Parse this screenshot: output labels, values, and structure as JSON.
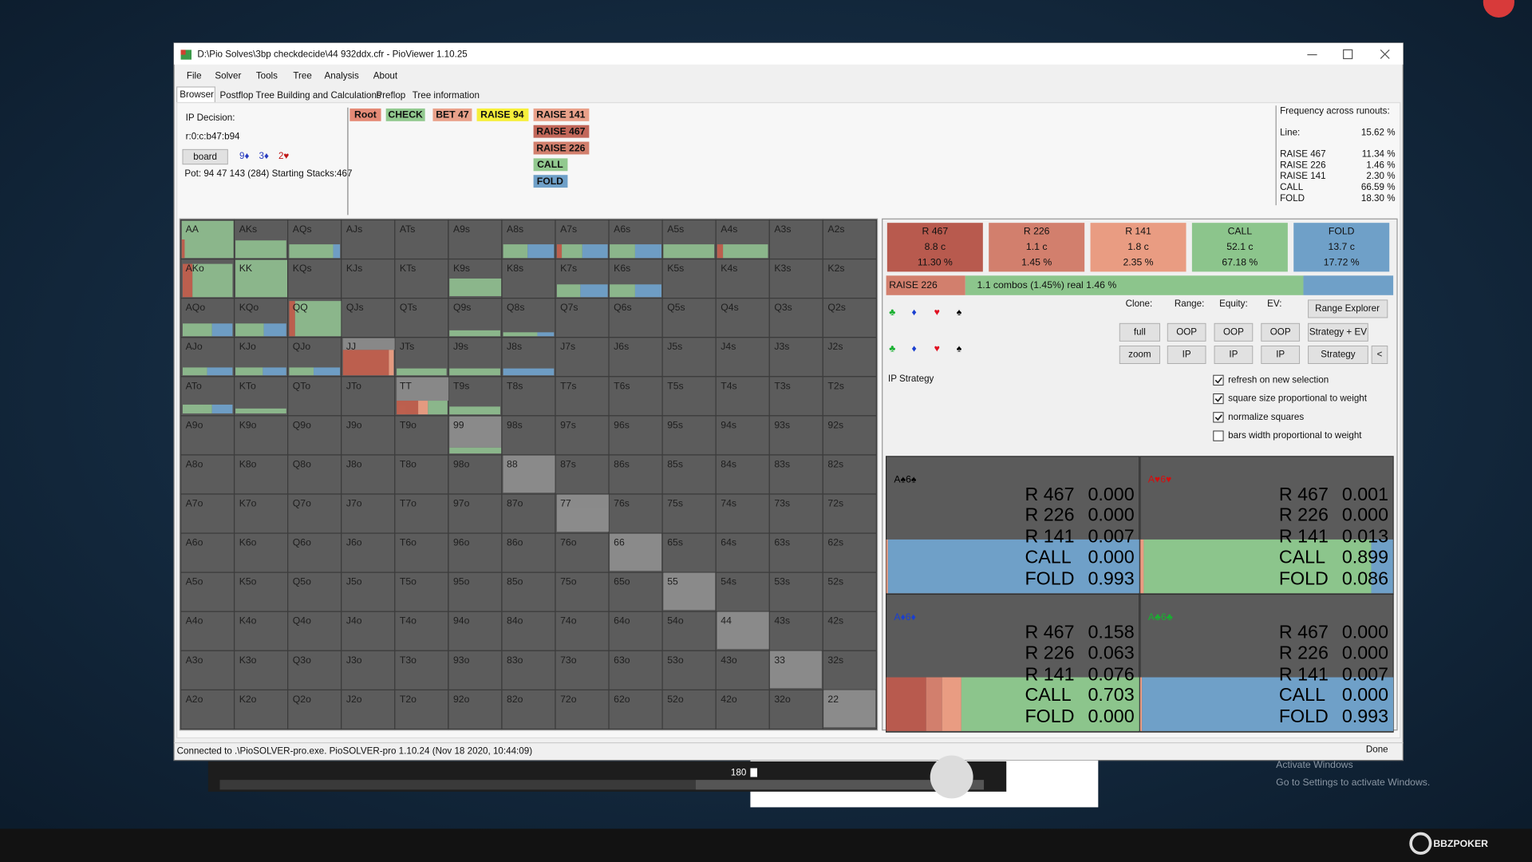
{
  "window": {
    "title": "D:\\Pio Solves\\3bp checkdecide\\44 932ddx.cfr - PioViewer 1.10.25",
    "menu": [
      "File",
      "Solver",
      "Tools",
      "Tree",
      "Analysis",
      "About"
    ],
    "tabs": [
      "Browser",
      "Postflop Tree Building and Calculations",
      "Preflop",
      "Tree information"
    ],
    "status": "Connected to .\\PioSOLVER-pro.exe. PioSOLVER-pro 1.10.24 (Nov 18 2020, 10:44:09)",
    "status_right": "Done"
  },
  "decision": {
    "label": "IP Decision:",
    "line": "r:0:c:b47:b94",
    "board_button": "board",
    "board_cards": [
      "9♦",
      "3♦",
      "2♥"
    ],
    "pot": "Pot: 94 47 143 (284) Starting Stacks:467"
  },
  "tree": {
    "path": [
      "Root",
      "CHECK",
      "BET 47",
      "RAISE 94",
      "RAISE 141"
    ],
    "actions": [
      "RAISE 467",
      "RAISE 226",
      "CALL",
      "FOLD"
    ]
  },
  "frequency": {
    "title": "Frequency across runouts:",
    "line_label": "Line:",
    "line_value": "15.62 %",
    "rows": [
      [
        "RAISE 467",
        "11.34 %"
      ],
      [
        "RAISE 226",
        "1.46 %"
      ],
      [
        "RAISE 141",
        "2.30 %"
      ],
      [
        "CALL",
        "66.59 %"
      ],
      [
        "FOLD",
        "18.30 %"
      ]
    ]
  },
  "grid": {
    "rows": [
      [
        "AA",
        "AKs",
        "AQs",
        "AJs",
        "ATs",
        "A9s",
        "A8s",
        "A7s",
        "A6s",
        "A5s",
        "A4s",
        "A3s",
        "A2s"
      ],
      [
        "AKo",
        "KK",
        "KQs",
        "KJs",
        "KTs",
        "K9s",
        "K8s",
        "K7s",
        "K6s",
        "K5s",
        "K4s",
        "K3s",
        "K2s"
      ],
      [
        "AQo",
        "KQo",
        "QQ",
        "QJs",
        "QTs",
        "Q9s",
        "Q8s",
        "Q7s",
        "Q6s",
        "Q5s",
        "Q4s",
        "Q3s",
        "Q2s"
      ],
      [
        "AJo",
        "KJo",
        "QJo",
        "JJ",
        "JTs",
        "J9s",
        "J8s",
        "J7s",
        "J6s",
        "J5s",
        "J4s",
        "J3s",
        "J2s"
      ],
      [
        "ATo",
        "KTo",
        "QTo",
        "JTo",
        "TT",
        "T9s",
        "T8s",
        "T7s",
        "T6s",
        "T5s",
        "T4s",
        "T3s",
        "T2s"
      ],
      [
        "A9o",
        "K9o",
        "Q9o",
        "J9o",
        "T9o",
        "99",
        "98s",
        "97s",
        "96s",
        "95s",
        "94s",
        "93s",
        "92s"
      ],
      [
        "A8o",
        "K8o",
        "Q8o",
        "J8o",
        "T8o",
        "98o",
        "88",
        "87s",
        "86s",
        "85s",
        "84s",
        "83s",
        "82s"
      ],
      [
        "A7o",
        "K7o",
        "Q7o",
        "J7o",
        "T7o",
        "97o",
        "87o",
        "77",
        "76s",
        "75s",
        "74s",
        "73s",
        "72s"
      ],
      [
        "A6o",
        "K6o",
        "Q6o",
        "J6o",
        "T6o",
        "96o",
        "86o",
        "76o",
        "66",
        "65s",
        "64s",
        "63s",
        "62s"
      ],
      [
        "A5o",
        "K5o",
        "Q5o",
        "J5o",
        "T5o",
        "95o",
        "85o",
        "75o",
        "65o",
        "55",
        "54s",
        "53s",
        "52s"
      ],
      [
        "A4o",
        "K4o",
        "Q4o",
        "J4o",
        "T4o",
        "94o",
        "84o",
        "74o",
        "64o",
        "54o",
        "44",
        "43s",
        "42s"
      ],
      [
        "A3o",
        "K3o",
        "Q3o",
        "J3o",
        "T3o",
        "93o",
        "83o",
        "73o",
        "63o",
        "53o",
        "43o",
        "33",
        "32s"
      ],
      [
        "A2o",
        "K2o",
        "Q2o",
        "J2o",
        "T2o",
        "92o",
        "82o",
        "72o",
        "62o",
        "52o",
        "42o",
        "32o",
        "22"
      ]
    ]
  },
  "strategy": {
    "boxes": [
      {
        "name": "R 467",
        "combos": "8.8 c",
        "percent": "11.30 %",
        "color": "#b85a4e"
      },
      {
        "name": "R 226",
        "combos": "1.1 c",
        "percent": "1.45 %",
        "color": "#d27f6d"
      },
      {
        "name": "R 141",
        "combos": "1.8 c",
        "percent": "2.35 %",
        "color": "#e99c82"
      },
      {
        "name": "CALL",
        "combos": "52.1 c",
        "percent": "67.18 %",
        "color": "#8cc58c"
      },
      {
        "name": "FOLD",
        "combos": "13.7 c",
        "percent": "17.72 %",
        "color": "#6fa0c8"
      }
    ],
    "selected": "RAISE 226",
    "selected_info": "1.1 combos (1.45%) real  1.46 %"
  },
  "controls": {
    "suits": [
      "♣",
      "♦",
      "♥",
      "♠"
    ],
    "headers": [
      "Clone:",
      "Range:",
      "Equity:",
      "EV:"
    ],
    "range_explorer": "Range Explorer",
    "buttons_row1": [
      "full",
      "OOP",
      "OOP",
      "OOP",
      "Strategy + EV"
    ],
    "buttons_row2": [
      "zoom",
      "IP",
      "IP",
      "IP",
      "Strategy",
      "<"
    ],
    "panel_title": "IP Strategy",
    "checkboxes": [
      {
        "label": "refresh on new selection",
        "checked": true
      },
      {
        "label": "square size proportional to weight",
        "checked": true
      },
      {
        "label": "normalize squares",
        "checked": true
      },
      {
        "label": "bars width proportional to weight",
        "checked": false
      }
    ]
  },
  "combos": [
    {
      "hand": "A♠6♠",
      "color": "#000000",
      "actions": [
        "R 467",
        "R 226",
        "R 141",
        "CALL",
        "FOLD"
      ],
      "values": [
        0,
        0,
        0.007,
        0,
        0.993
      ],
      "value_labels": [
        "0.000",
        "0.000",
        "0.007",
        "0.000",
        "0.993"
      ]
    },
    {
      "hand": "A♥6♥",
      "color": "#d01010",
      "actions": [
        "R 467",
        "R 226",
        "R 141",
        "CALL",
        "FOLD"
      ],
      "values": [
        0.001,
        0,
        0.013,
        0.899,
        0.086
      ],
      "value_labels": [
        "0.001",
        "0.000",
        "0.013",
        "0.899",
        "0.086"
      ]
    },
    {
      "hand": "A♦6♦",
      "color": "#1a3fd0",
      "actions": [
        "R 467",
        "R 226",
        "R 141",
        "CALL",
        "FOLD"
      ],
      "values": [
        0.158,
        0.063,
        0.076,
        0.703,
        0
      ],
      "value_labels": [
        "0.158",
        "0.063",
        "0.076",
        "0.703",
        "0.000"
      ]
    },
    {
      "hand": "A♣6♣",
      "color": "#18b030",
      "actions": [
        "R 467",
        "R 226",
        "R 141",
        "CALL",
        "FOLD"
      ],
      "values": [
        0,
        0,
        0.007,
        0,
        0.993
      ],
      "value_labels": [
        "0.000",
        "0.000",
        "0.007",
        "0.000",
        "0.993"
      ]
    }
  ],
  "overlay": {
    "player_time": "180",
    "activate_title": "Activate Windows",
    "activate_sub": "Go to Settings to activate Windows.",
    "logo": "BBZPOKER"
  }
}
